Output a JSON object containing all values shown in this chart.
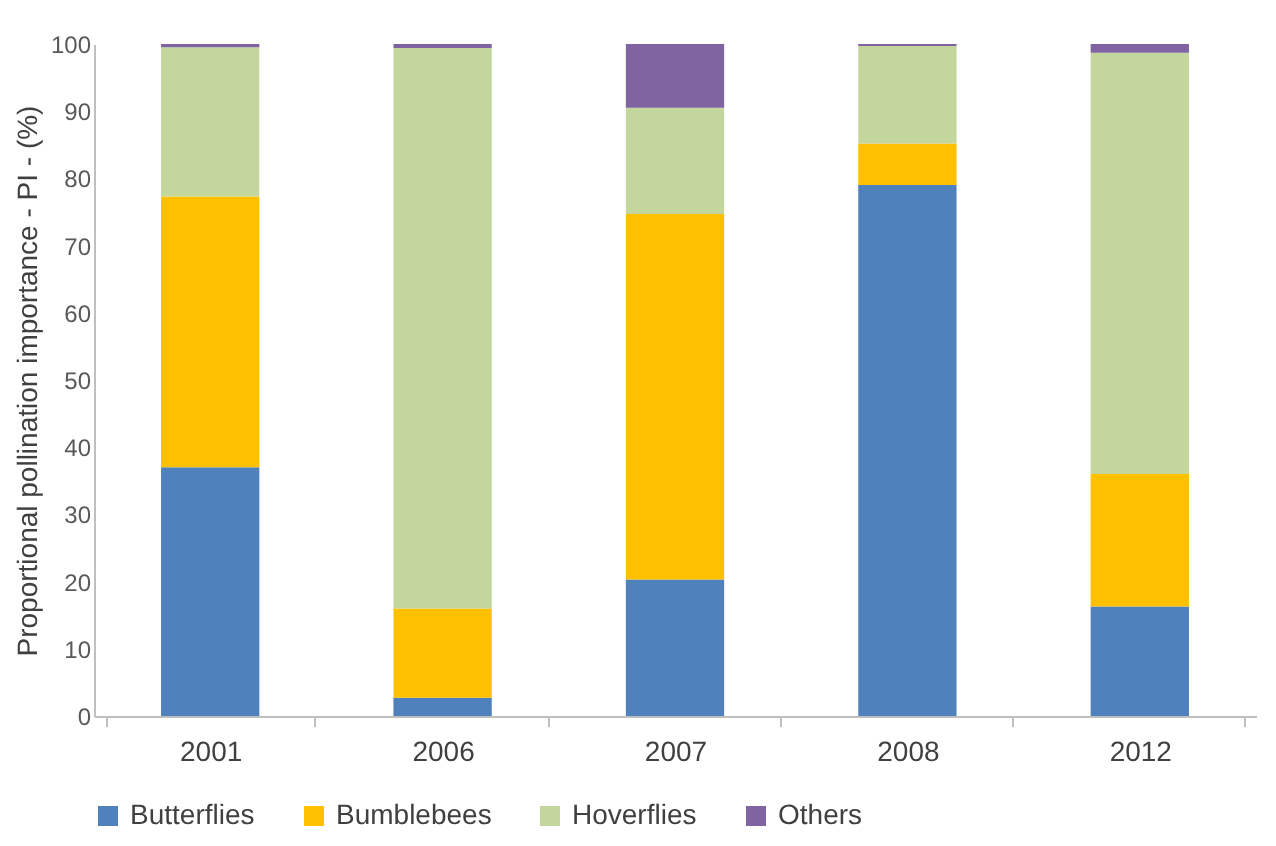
{
  "chart_data": {
    "type": "bar",
    "stacked": true,
    "ylabel": "Proportional pollination importance  - PI - (%)",
    "categories": [
      "2001",
      "2006",
      "2007",
      "2008",
      "2012"
    ],
    "series": [
      {
        "name": "Butterflies",
        "color": "#4f81bd",
        "values": [
          37,
          2.7,
          20.3,
          79,
          16.3
        ]
      },
      {
        "name": "Bumblebees",
        "color": "#ffc000",
        "values": [
          40.3,
          13.3,
          54.4,
          6.2,
          19.7
        ]
      },
      {
        "name": "Hoverflies",
        "color": "#c3d69b",
        "values": [
          22.2,
          83.4,
          15.8,
          14.5,
          62.7
        ]
      },
      {
        "name": "Others",
        "color": "#8064a2",
        "values": [
          0.5,
          0.6,
          9.5,
          0.3,
          1.3
        ]
      }
    ],
    "ylim": [
      0,
      100
    ],
    "yticks": [
      0,
      10,
      20,
      30,
      40,
      50,
      60,
      70,
      80,
      90,
      100
    ],
    "grid": false,
    "legend": "bottom"
  }
}
